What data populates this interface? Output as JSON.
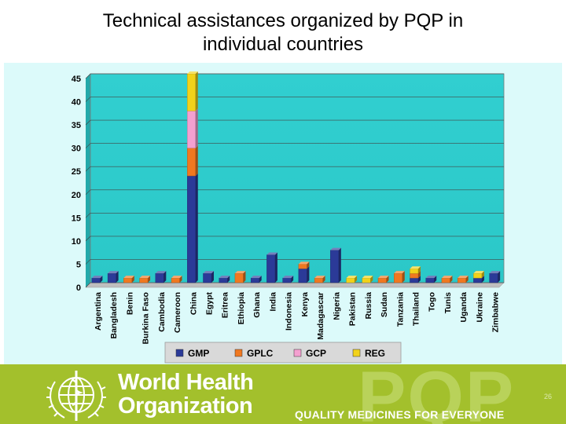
{
  "slide": {
    "title_line1": "Technical assistances organized by PQP in",
    "title_line2": "individual countries",
    "org_name_line1": "World Health",
    "org_name_line2": "Organization",
    "program_logo": "PQP",
    "tagline": "QUALITY MEDICINES FOR EVERYONE",
    "slide_number": "26"
  },
  "chart_data": {
    "type": "bar",
    "stacked": true,
    "categories": [
      "Argentina",
      "Bangladesh",
      "Benin",
      "Burkina Faso",
      "Cambodia",
      "Cameroon",
      "China",
      "Egypt",
      "Eritrea",
      "Ethiopia",
      "Ghana",
      "India",
      "Indonesia",
      "Kenya",
      "Madagascar",
      "Nigeria",
      "Pakistan",
      "Russia",
      "Sudan",
      "Tanzania",
      "Thailand",
      "Togo",
      "Tunis",
      "Uganda",
      "Ukraine",
      "Zimbabwe"
    ],
    "series": [
      {
        "name": "GMP",
        "color": "#2b3a98",
        "values": [
          1,
          2,
          0,
          0,
          2,
          0,
          23,
          2,
          1,
          0,
          1,
          6,
          1,
          3,
          0,
          7,
          0,
          0,
          0,
          0,
          1,
          1,
          0,
          0,
          1,
          2
        ]
      },
      {
        "name": "GPLC",
        "color": "#f07820",
        "values": [
          0,
          0,
          1,
          1,
          0,
          1,
          6,
          0,
          0,
          2,
          0,
          0,
          0,
          1,
          1,
          0,
          0,
          0,
          1,
          2,
          1,
          0,
          1,
          1,
          0,
          0
        ]
      },
      {
        "name": "GCP",
        "color": "#f4a0d0",
        "values": [
          0,
          0,
          0,
          0,
          0,
          0,
          8,
          0,
          0,
          0,
          0,
          0,
          0,
          0,
          0,
          0,
          0,
          0,
          0,
          0,
          0,
          0,
          0,
          0,
          0,
          0
        ]
      },
      {
        "name": "REG",
        "color": "#f2d21a",
        "values": [
          0,
          0,
          0,
          0,
          0,
          0,
          8,
          0,
          0,
          0,
          0,
          0,
          0,
          0,
          0,
          0,
          1,
          1,
          0,
          0,
          1,
          0,
          0,
          0,
          1,
          0
        ]
      }
    ],
    "yticks": [
      0,
      5,
      10,
      15,
      20,
      25,
      30,
      35,
      40,
      45
    ],
    "ylim": [
      0,
      45
    ],
    "grid": true,
    "legend": "bottom"
  }
}
